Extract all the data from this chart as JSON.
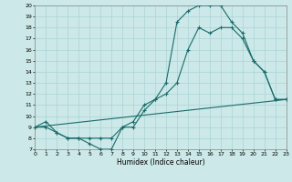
{
  "title": "",
  "xlabel": "Humidex (Indice chaleur)",
  "xlim": [
    0,
    23
  ],
  "ylim": [
    7,
    20
  ],
  "yticks": [
    7,
    8,
    9,
    10,
    11,
    12,
    13,
    14,
    15,
    16,
    17,
    18,
    19,
    20
  ],
  "xticks": [
    0,
    1,
    2,
    3,
    4,
    5,
    6,
    7,
    8,
    9,
    10,
    11,
    12,
    13,
    14,
    15,
    16,
    17,
    18,
    19,
    20,
    21,
    22,
    23
  ],
  "bg_color": "#cce8e8",
  "grid_color": "#aad4d4",
  "line_color": "#1a6b6b",
  "line1_x": [
    0,
    1,
    2,
    3,
    4,
    5,
    6,
    7,
    8,
    9,
    10,
    11,
    12,
    13,
    14,
    15,
    16,
    17,
    18,
    19,
    20,
    21,
    22,
    23
  ],
  "line1_y": [
    9,
    9.5,
    8.5,
    8,
    8,
    7.5,
    7,
    7,
    9,
    9,
    10.5,
    11.5,
    13,
    18.5,
    19.5,
    20,
    20,
    20,
    18.5,
    17.5,
    15,
    14,
    11.5,
    11.5
  ],
  "line2_x": [
    0,
    23
  ],
  "line2_y": [
    9,
    11.5
  ],
  "line3_x": [
    0,
    1,
    2,
    3,
    4,
    5,
    6,
    7,
    8,
    9,
    10,
    11,
    12,
    13,
    14,
    15,
    16,
    17,
    18,
    19,
    20,
    21,
    22,
    23
  ],
  "line3_y": [
    9,
    9,
    8.5,
    8,
    8,
    8,
    8,
    8,
    9,
    9.5,
    11,
    11.5,
    12,
    13,
    16,
    18,
    17.5,
    18,
    18,
    17,
    15,
    14,
    11.5,
    11.5
  ]
}
